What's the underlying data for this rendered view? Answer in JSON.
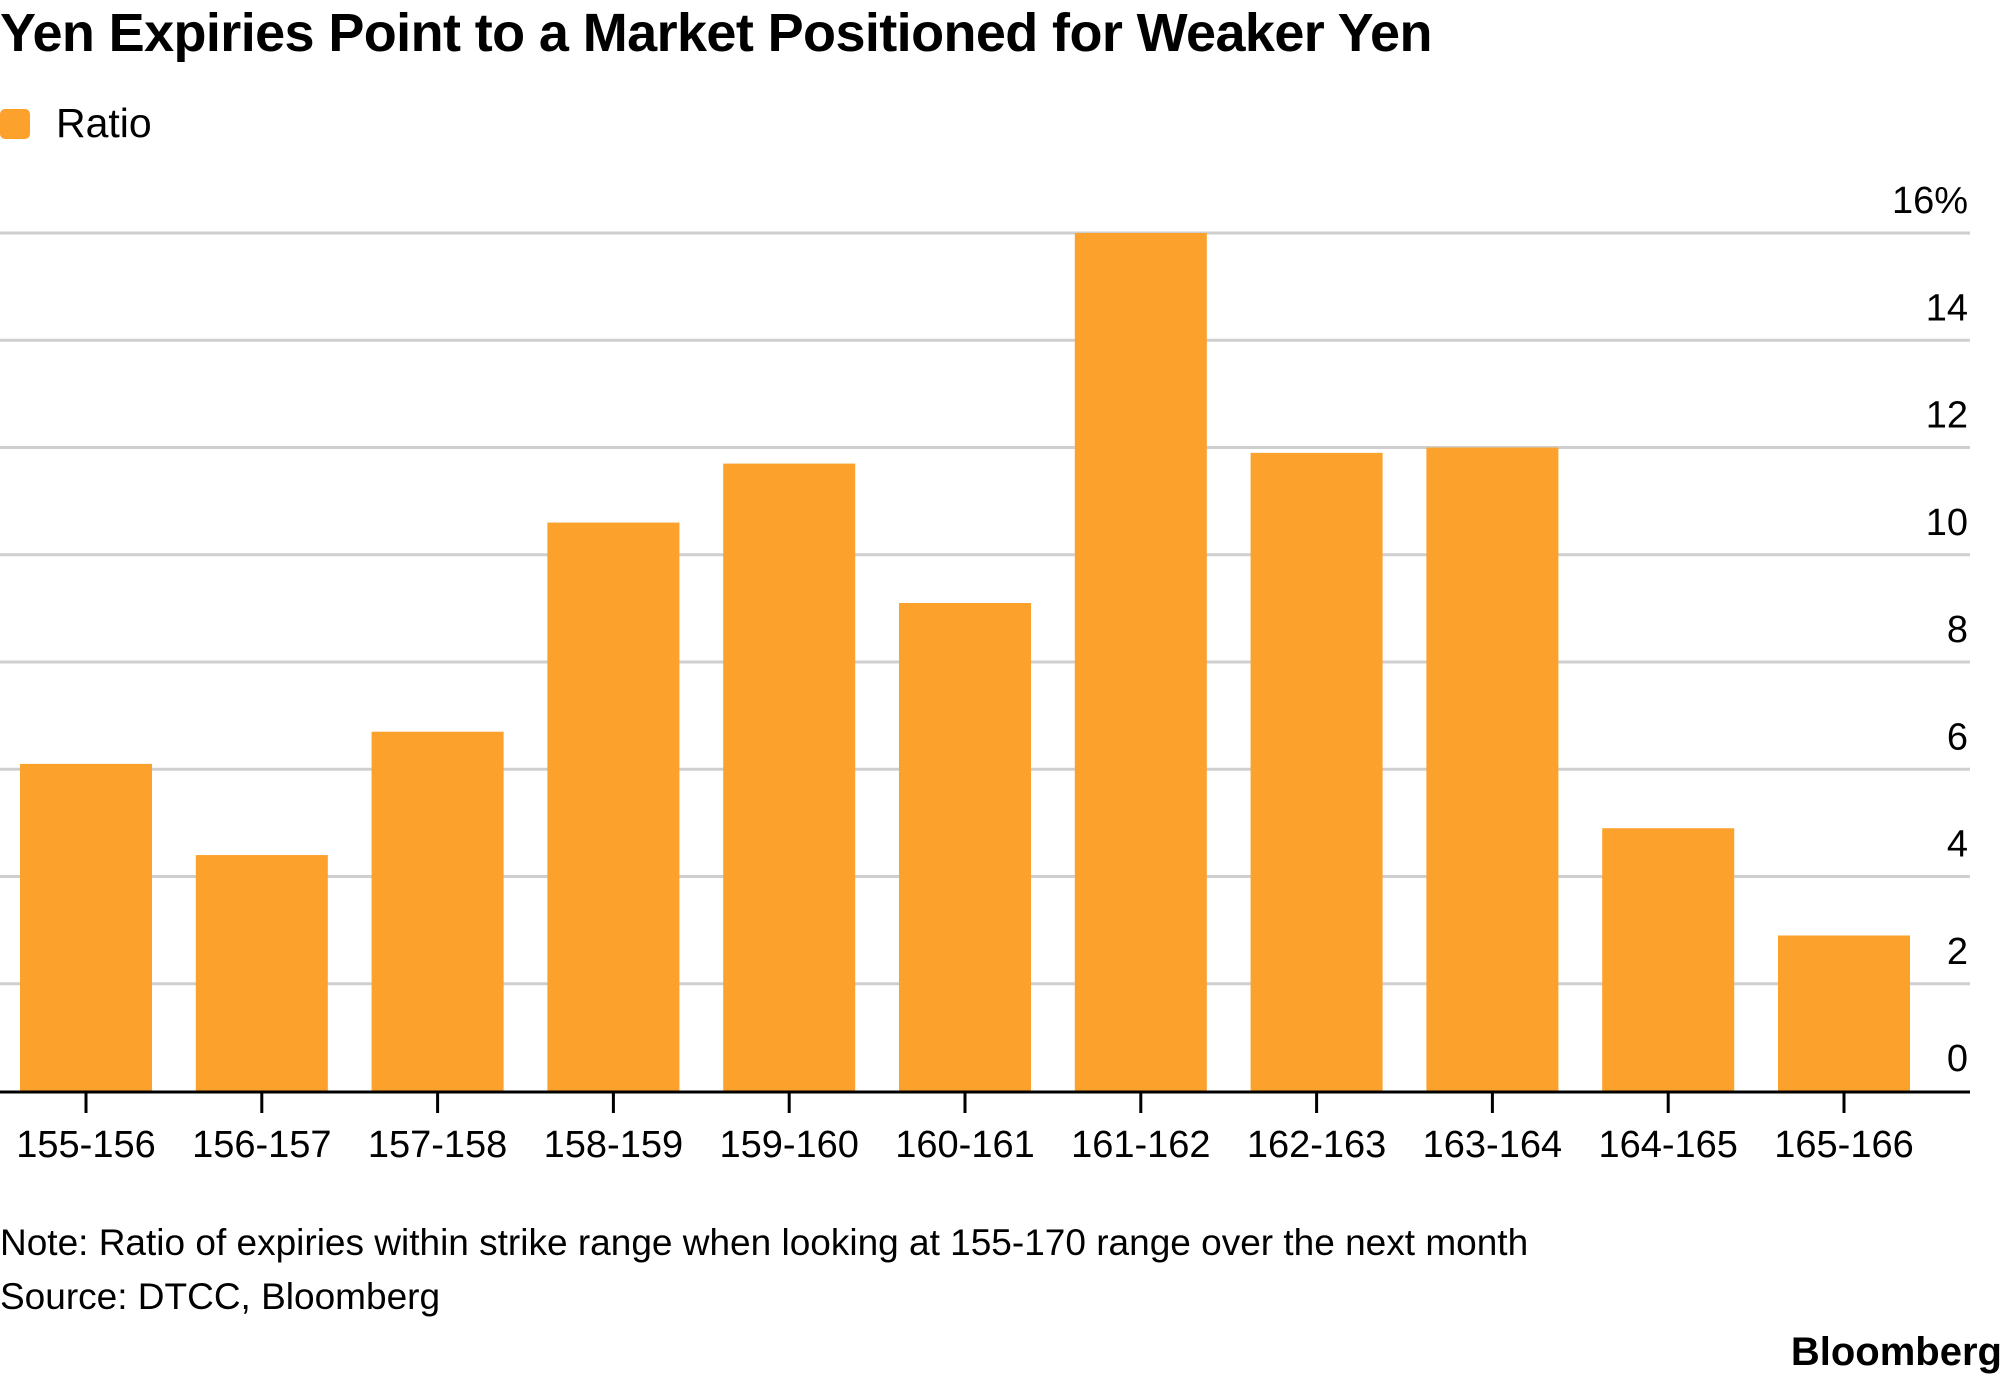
{
  "title": "Yen Expiries Point to a Market Positioned for Weaker Yen",
  "legend": {
    "label": "Ratio"
  },
  "colors": {
    "bar": "#FBA12C",
    "grid": "#CFCFCF",
    "axis": "#000000"
  },
  "chart_data": {
    "type": "bar",
    "title": "Yen Expiries Point to a Market Positioned for Weaker Yen",
    "xlabel": "",
    "ylabel": "",
    "categories": [
      "155-156",
      "156-157",
      "157-158",
      "158-159",
      "159-160",
      "160-161",
      "161-162",
      "162-163",
      "163-164",
      "164-165",
      "165-166"
    ],
    "series": [
      {
        "name": "Ratio",
        "values": [
          6.1,
          4.4,
          6.7,
          10.6,
          11.7,
          9.1,
          16.0,
          11.9,
          12.0,
          4.9,
          2.9
        ]
      }
    ],
    "ylim": [
      0,
      16
    ],
    "yticks": [
      0,
      2,
      4,
      6,
      8,
      10,
      12,
      14,
      16
    ],
    "ytick_labels": [
      "0",
      "2",
      "4",
      "6",
      "8",
      "10",
      "12",
      "14",
      "16%"
    ],
    "y_axis_side": "right",
    "grid": true,
    "legend_position": "top-left"
  },
  "footer": {
    "note": "Note: Ratio of expiries within strike range when looking at 155-170 range over the next month",
    "source": "Source: DTCC, Bloomberg",
    "brand": "Bloomberg"
  }
}
